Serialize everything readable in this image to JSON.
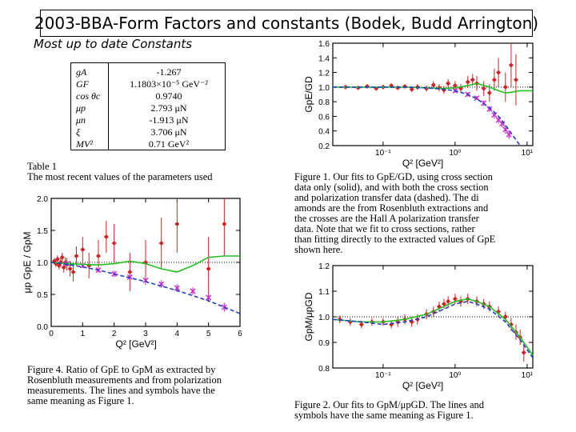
{
  "title": "2003-BBA-Form Factors and constants (Bodek, Budd Arrington)",
  "subtitle": "Most up to date Constants",
  "constants_table": {
    "rows": [
      {
        "symbol": "gA",
        "value": "-1.267"
      },
      {
        "symbol": "GF",
        "value": "1.1803×10⁻⁵ GeV⁻²"
      },
      {
        "symbol": "cos θc",
        "value": "0.9740"
      },
      {
        "symbol": "μp",
        "value": "2.793 μN"
      },
      {
        "symbol": "μn",
        "value": "-1.913 μN"
      },
      {
        "symbol": "ξ",
        "value": "3.706 μN"
      },
      {
        "symbol": "MV²",
        "value": "0.71 GeV²"
      }
    ],
    "caption_title": "Table 1",
    "caption_text": "The most recent values of the parameters used"
  },
  "figure1": {
    "caption_lines": [
      "Figure 1.  Our fits to GpE/GD, using cross section",
      "data only (solid), and with both the cross section",
      "and polarization transfer data (dashed).  The di",
      "amonds are the from Rosenbluth extractions and",
      "the crosses are the Hall A polarization transfer",
      "data.  Note that we fit to cross sections, rather",
      "than fitting directly to the extracted values of GpE",
      "shown here."
    ]
  },
  "figure2": {
    "caption_lines": [
      "Figure 2.  Our fits to GpM/μpGD.  The lines and",
      "symbols have the same meaning as Figure 1."
    ]
  },
  "figure4": {
    "caption_lines": [
      "Figure 4.    Ratio of GpE to GpM as extracted by",
      "Rosenbluth measurements and from polarization",
      "measurements.  The lines and symbols have the",
      "same meaning as Figure 1."
    ]
  },
  "chart_data": [
    {
      "id": "fig1",
      "type": "scatter",
      "ylabel": "GpE/GD",
      "xlabel": "Q² [GeV²]",
      "xscale": "log",
      "xlim": [
        0.02,
        12
      ],
      "ylim": [
        0.2,
        1.6
      ],
      "yticks": [
        "1.6",
        "1.4",
        "1.2",
        "1.0",
        "0.8",
        "0.6",
        "0.4",
        "0.2"
      ],
      "xticks": [
        "10⁻¹",
        "10⁰",
        "10¹"
      ],
      "series": [
        {
          "style": "rosenbluth-diamonds",
          "color": "#d42020",
          "x": [
            0.03,
            0.045,
            0.06,
            0.08,
            0.1,
            0.13,
            0.16,
            0.2,
            0.25,
            0.3,
            0.4,
            0.5,
            0.6,
            0.7,
            0.8,
            1.0,
            1.2,
            1.5,
            1.75,
            2.0,
            2.5,
            3.0,
            3.5,
            4.0,
            5.0,
            6.0,
            7.0
          ],
          "y": [
            1.0,
            0.99,
            1.01,
            0.98,
            1.0,
            1.02,
            0.99,
            1.01,
            0.97,
            1.0,
            0.98,
            1.03,
            0.99,
            0.96,
            1.05,
            1.02,
            0.98,
            1.07,
            1.1,
            1.05,
            0.98,
            0.92,
            1.1,
            1.2,
            1.0,
            1.3,
            1.1
          ],
          "err": [
            0.02,
            0.02,
            0.02,
            0.02,
            0.03,
            0.03,
            0.03,
            0.03,
            0.04,
            0.04,
            0.04,
            0.05,
            0.05,
            0.05,
            0.06,
            0.06,
            0.06,
            0.08,
            0.08,
            0.1,
            0.1,
            0.12,
            0.15,
            0.2,
            0.2,
            0.3,
            0.35
          ]
        },
        {
          "style": "polarization-crosses",
          "color": "#d020d0",
          "x": [
            1.0,
            1.5,
            2.0,
            2.5,
            3.0,
            3.5,
            4.0,
            4.5,
            5.0,
            5.6
          ],
          "y": [
            0.95,
            0.9,
            0.85,
            0.78,
            0.7,
            0.62,
            0.55,
            0.5,
            0.42,
            0.35
          ],
          "err": [
            0.03,
            0.03,
            0.03,
            0.04,
            0.04,
            0.05,
            0.05,
            0.05,
            0.06,
            0.06
          ]
        },
        {
          "style": "fit-solid",
          "color": "#20c020",
          "x": [
            0.02,
            0.05,
            0.1,
            0.2,
            0.4,
            0.7,
            1.0,
            1.5,
            2.0,
            3.0,
            4.0,
            5.0,
            6.0,
            8.0,
            12.0
          ],
          "y": [
            1.0,
            1.0,
            1.0,
            1.0,
            0.99,
            0.98,
            0.99,
            1.02,
            1.05,
            1.0,
            0.95,
            0.92,
            0.93,
            0.95,
            0.95
          ]
        },
        {
          "style": "fit-dashed",
          "color": "#2040c0",
          "x": [
            0.02,
            0.05,
            0.1,
            0.2,
            0.4,
            0.7,
            1.0,
            1.5,
            2.0,
            3.0,
            4.0,
            5.0,
            6.0,
            8.0
          ],
          "y": [
            1.0,
            1.0,
            1.0,
            1.0,
            0.99,
            0.97,
            0.95,
            0.9,
            0.84,
            0.72,
            0.6,
            0.48,
            0.37,
            0.2
          ]
        }
      ]
    },
    {
      "id": "fig4",
      "type": "scatter",
      "ylabel": "μp GpE / GpM",
      "xlabel": "Q² [GeV²]",
      "xlim": [
        0,
        6
      ],
      "ylim": [
        0,
        2
      ],
      "yticks": [
        "2.0",
        "1.5",
        "1.0",
        "0.5",
        "0.0"
      ],
      "xticks": [
        "0",
        "1",
        "2",
        "3",
        "4",
        "5",
        "6"
      ],
      "series": [
        {
          "style": "rosenbluth-diamonds",
          "color": "#d42020",
          "x": [
            0.1,
            0.15,
            0.2,
            0.25,
            0.3,
            0.35,
            0.4,
            0.45,
            0.5,
            0.6,
            0.7,
            0.8,
            1.0,
            1.2,
            1.5,
            1.75,
            2.0,
            2.5,
            3.0,
            3.5,
            4.0,
            5.0,
            5.5
          ],
          "y": [
            1.02,
            0.98,
            1.05,
            0.95,
            1.0,
            1.08,
            0.92,
            1.0,
            0.97,
            0.9,
            0.85,
            1.1,
            1.2,
            0.95,
            1.1,
            1.4,
            1.3,
            0.85,
            1.0,
            1.3,
            1.6,
            0.9,
            1.6
          ],
          "err": [
            0.05,
            0.05,
            0.06,
            0.06,
            0.07,
            0.07,
            0.08,
            0.08,
            0.1,
            0.12,
            0.15,
            0.15,
            0.2,
            0.2,
            0.25,
            0.25,
            0.3,
            0.3,
            0.35,
            0.4,
            0.45,
            0.5,
            0.5
          ]
        },
        {
          "style": "polarization-crosses",
          "color": "#d020d0",
          "x": [
            0.5,
            1.0,
            1.5,
            2.0,
            2.5,
            3.0,
            3.5,
            4.0,
            4.5,
            5.0,
            5.5
          ],
          "y": [
            0.98,
            0.95,
            0.88,
            0.82,
            0.77,
            0.72,
            0.66,
            0.6,
            0.55,
            0.45,
            0.3
          ],
          "err": [
            0.03,
            0.04,
            0.04,
            0.05,
            0.05,
            0.05,
            0.06,
            0.06,
            0.06,
            0.07,
            0.07
          ]
        },
        {
          "style": "fit-solid",
          "color": "#20c020",
          "x": [
            0,
            0.5,
            1,
            1.5,
            2,
            2.5,
            3,
            3.5,
            4,
            4.5,
            5,
            5.5,
            6
          ],
          "y": [
            1.0,
            0.98,
            0.97,
            0.96,
            0.98,
            1.02,
            0.98,
            0.9,
            0.85,
            0.95,
            1.08,
            1.1,
            1.1
          ]
        },
        {
          "style": "fit-dashed",
          "color": "#2040c0",
          "x": [
            0,
            0.5,
            1,
            1.5,
            2,
            2.5,
            3,
            3.5,
            4,
            4.5,
            5,
            5.5,
            6
          ],
          "y": [
            1.0,
            0.97,
            0.93,
            0.88,
            0.82,
            0.76,
            0.7,
            0.63,
            0.56,
            0.48,
            0.4,
            0.3,
            0.2
          ]
        }
      ]
    },
    {
      "id": "fig2",
      "type": "scatter",
      "ylabel": "GpM/μpGD",
      "xlabel": "Q² [GeV²]",
      "xscale": "log",
      "xlim": [
        0.02,
        12
      ],
      "ylim": [
        0.8,
        1.2
      ],
      "yticks": [
        "1.2",
        "1.1",
        "1.0",
        "0.9",
        "0.8"
      ],
      "xticks": [
        "10⁻¹",
        "10⁰",
        "10¹"
      ],
      "series": [
        {
          "style": "rosenbluth-diamonds",
          "color": "#d42020",
          "x": [
            0.025,
            0.035,
            0.05,
            0.07,
            0.1,
            0.13,
            0.16,
            0.2,
            0.25,
            0.3,
            0.4,
            0.5,
            0.6,
            0.7,
            0.8,
            1.0,
            1.2,
            1.5,
            2.0,
            2.5,
            3.0,
            4.0,
            5.0,
            6.0,
            7.0,
            8.0,
            9.0
          ],
          "y": [
            0.99,
            0.98,
            0.97,
            0.98,
            0.98,
            0.97,
            0.98,
            0.99,
            0.98,
            0.99,
            1.01,
            1.02,
            1.04,
            1.05,
            1.06,
            1.07,
            1.06,
            1.07,
            1.06,
            1.05,
            1.04,
            1.02,
            1.0,
            0.97,
            0.94,
            0.92,
            0.86
          ],
          "err": [
            0.015,
            0.015,
            0.015,
            0.015,
            0.015,
            0.015,
            0.02,
            0.02,
            0.02,
            0.02,
            0.02,
            0.02,
            0.02,
            0.02,
            0.02,
            0.02,
            0.02,
            0.02,
            0.02,
            0.02,
            0.02,
            0.02,
            0.02,
            0.025,
            0.03,
            0.03,
            0.035
          ]
        },
        {
          "style": "fit-solid",
          "color": "#20c020",
          "x": [
            0.02,
            0.05,
            0.1,
            0.2,
            0.4,
            0.7,
            1.0,
            1.5,
            2.0,
            3.0,
            5.0,
            8.0,
            12.0
          ],
          "y": [
            0.99,
            0.98,
            0.98,
            0.99,
            1.01,
            1.04,
            1.06,
            1.07,
            1.06,
            1.04,
            0.99,
            0.92,
            0.85
          ]
        },
        {
          "style": "fit-dashed",
          "color": "#2040c0",
          "x": [
            0.02,
            0.05,
            0.1,
            0.2,
            0.4,
            0.7,
            1.0,
            1.5,
            2.0,
            3.0,
            5.0,
            8.0,
            12.0
          ],
          "y": [
            0.99,
            0.98,
            0.97,
            0.98,
            1.0,
            1.03,
            1.05,
            1.06,
            1.05,
            1.03,
            0.98,
            0.91,
            0.84
          ]
        }
      ]
    }
  ]
}
